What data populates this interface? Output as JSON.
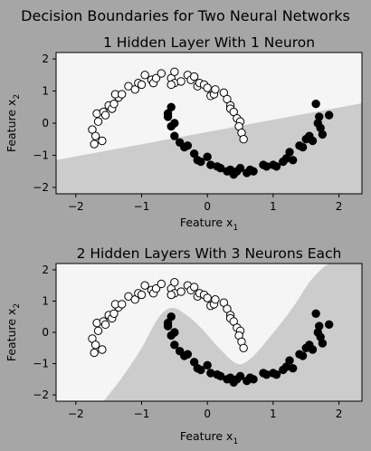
{
  "figure": {
    "suptitle": "Decision Boundaries for Two Neural Networks",
    "colors": {
      "figure_bg": "#a6a6a6",
      "class0_region": "#f5f5f5",
      "class1_region": "#cccccc",
      "class0_point": "#ffffff",
      "class1_point": "#000000"
    }
  },
  "chart_data": [
    {
      "type": "scatter",
      "title": "1 Hidden Layer With 1 Neuron",
      "xlabel": "Feature x1",
      "xlabel_main": "Feature x",
      "xlabel_sub": "1",
      "ylabel": "Feature x2",
      "ylabel_main": "Feature x",
      "ylabel_sub": "2",
      "xlim": [
        -2.3,
        2.35
      ],
      "ylim": [
        -2.2,
        2.2
      ],
      "xticks": [
        -2,
        -1,
        0,
        1,
        2
      ],
      "yticks": [
        -2,
        -1,
        0,
        1,
        2
      ],
      "boundary": {
        "kind": "line",
        "x": [
          -2.3,
          2.35
        ],
        "y": [
          -1.15,
          0.62
        ],
        "below_class": 1
      },
      "series": [
        {
          "class": 0,
          "x": [
            -1.75,
            -1.7,
            -1.72,
            -1.6,
            -1.68,
            -1.66,
            -1.58,
            -1.55,
            -1.5,
            -1.45,
            -1.42,
            -1.35,
            -1.4,
            -1.3,
            -1.2,
            -1.1,
            -1.05,
            -1.0,
            -0.95,
            -0.85,
            -0.82,
            -0.78,
            -0.7,
            -0.55,
            -0.5,
            -0.5,
            -0.55,
            -0.4,
            -0.3,
            -0.25,
            -0.2,
            -0.15,
            -0.12,
            -0.05,
            0.0,
            0.05,
            0.1,
            0.12,
            0.25,
            0.3,
            0.35,
            0.35,
            0.4,
            0.45,
            0.5,
            0.48,
            0.52,
            0.55
          ],
          "y": [
            -0.2,
            -0.4,
            -0.65,
            -0.55,
            0.3,
            0.05,
            0.35,
            0.25,
            0.55,
            0.45,
            0.6,
            0.8,
            0.9,
            0.9,
            1.15,
            1.05,
            1.25,
            1.2,
            1.5,
            1.35,
            1.25,
            1.4,
            1.55,
            1.4,
            1.25,
            1.6,
            1.2,
            1.3,
            1.5,
            1.35,
            1.45,
            1.15,
            1.25,
            1.2,
            1.1,
            0.85,
            0.9,
            1.05,
            0.95,
            0.75,
            0.55,
            0.45,
            0.35,
            0.15,
            0.05,
            -0.1,
            -0.3,
            -0.5
          ]
        },
        {
          "class": 1,
          "x": [
            -0.6,
            -0.55,
            -0.6,
            -0.55,
            -0.5,
            -0.5,
            -0.42,
            -0.35,
            -0.3,
            -0.2,
            -0.15,
            -0.1,
            0.0,
            0.05,
            0.15,
            0.2,
            0.3,
            0.35,
            0.4,
            0.45,
            0.5,
            0.6,
            0.65,
            0.7,
            0.85,
            0.9,
            1.0,
            1.05,
            1.15,
            1.2,
            1.25,
            1.3,
            1.4,
            1.45,
            1.5,
            1.55,
            1.6,
            1.65,
            1.7,
            1.72,
            1.75,
            1.68,
            1.85
          ],
          "y": [
            0.3,
            0.5,
            0.2,
            -0.1,
            0.0,
            -0.4,
            -0.6,
            -0.75,
            -0.7,
            -0.95,
            -1.15,
            -1.2,
            -1.05,
            -1.3,
            -1.35,
            -1.4,
            -1.5,
            -1.45,
            -1.6,
            -1.5,
            -1.4,
            -1.55,
            -1.45,
            -1.5,
            -1.3,
            -1.35,
            -1.3,
            -1.35,
            -1.2,
            -1.1,
            -0.9,
            -1.15,
            -0.7,
            -0.75,
            -0.5,
            -0.4,
            -0.55,
            0.6,
            0.2,
            -0.15,
            -0.35,
            0.0,
            0.25
          ]
        }
      ]
    },
    {
      "type": "scatter",
      "title": "2 Hidden Layers With 3 Neurons Each",
      "xlabel": "Feature x1",
      "xlabel_main": "Feature x",
      "xlabel_sub": "1",
      "ylabel": "Feature x2",
      "ylabel_main": "Feature x",
      "ylabel_sub": "2",
      "xlim": [
        -2.3,
        2.35
      ],
      "ylim": [
        -2.2,
        2.2
      ],
      "xticks": [
        -2,
        -1,
        0,
        1,
        2
      ],
      "yticks": [
        -2,
        -1,
        0,
        1,
        2
      ],
      "boundary": {
        "kind": "curve",
        "x": [
          -1.58,
          -1.3,
          -1.0,
          -0.75,
          -0.55,
          -0.35,
          -0.1,
          0.2,
          0.45,
          0.65,
          0.95,
          1.3,
          1.55,
          1.75,
          1.85
        ],
        "y": [
          -2.2,
          -1.45,
          -0.5,
          0.45,
          0.78,
          0.6,
          0.15,
          -0.55,
          -1.0,
          -0.85,
          -0.15,
          0.8,
          1.6,
          2.05,
          2.2
        ],
        "below_class": 1
      },
      "series": [
        {
          "class": 0,
          "x": [
            -1.75,
            -1.7,
            -1.72,
            -1.6,
            -1.68,
            -1.66,
            -1.58,
            -1.55,
            -1.5,
            -1.45,
            -1.42,
            -1.35,
            -1.4,
            -1.3,
            -1.2,
            -1.1,
            -1.05,
            -1.0,
            -0.95,
            -0.85,
            -0.82,
            -0.78,
            -0.7,
            -0.55,
            -0.5,
            -0.5,
            -0.55,
            -0.4,
            -0.3,
            -0.25,
            -0.2,
            -0.15,
            -0.12,
            -0.05,
            0.0,
            0.05,
            0.1,
            0.12,
            0.25,
            0.3,
            0.35,
            0.35,
            0.4,
            0.45,
            0.5,
            0.48,
            0.52,
            0.55
          ],
          "y": [
            -0.2,
            -0.4,
            -0.65,
            -0.55,
            0.3,
            0.05,
            0.35,
            0.25,
            0.55,
            0.45,
            0.6,
            0.8,
            0.9,
            0.9,
            1.15,
            1.05,
            1.25,
            1.2,
            1.5,
            1.35,
            1.25,
            1.4,
            1.55,
            1.4,
            1.25,
            1.6,
            1.2,
            1.3,
            1.5,
            1.35,
            1.45,
            1.15,
            1.25,
            1.2,
            1.1,
            0.85,
            0.9,
            1.05,
            0.95,
            0.75,
            0.55,
            0.45,
            0.35,
            0.15,
            0.05,
            -0.1,
            -0.3,
            -0.5
          ]
        },
        {
          "class": 1,
          "x": [
            -0.6,
            -0.55,
            -0.6,
            -0.55,
            -0.5,
            -0.5,
            -0.42,
            -0.35,
            -0.3,
            -0.2,
            -0.15,
            -0.1,
            0.0,
            0.05,
            0.15,
            0.2,
            0.3,
            0.35,
            0.4,
            0.45,
            0.5,
            0.6,
            0.65,
            0.7,
            0.85,
            0.9,
            1.0,
            1.05,
            1.15,
            1.2,
            1.25,
            1.3,
            1.4,
            1.45,
            1.5,
            1.55,
            1.6,
            1.65,
            1.7,
            1.72,
            1.75,
            1.68,
            1.85
          ],
          "y": [
            0.3,
            0.5,
            0.2,
            -0.1,
            0.0,
            -0.4,
            -0.6,
            -0.75,
            -0.7,
            -0.95,
            -1.15,
            -1.2,
            -1.05,
            -1.3,
            -1.35,
            -1.4,
            -1.5,
            -1.45,
            -1.6,
            -1.5,
            -1.4,
            -1.55,
            -1.45,
            -1.5,
            -1.3,
            -1.35,
            -1.3,
            -1.35,
            -1.2,
            -1.1,
            -0.9,
            -1.15,
            -0.7,
            -0.75,
            -0.5,
            -0.4,
            -0.55,
            0.6,
            0.2,
            -0.15,
            -0.35,
            0.0,
            0.25
          ]
        }
      ]
    }
  ]
}
